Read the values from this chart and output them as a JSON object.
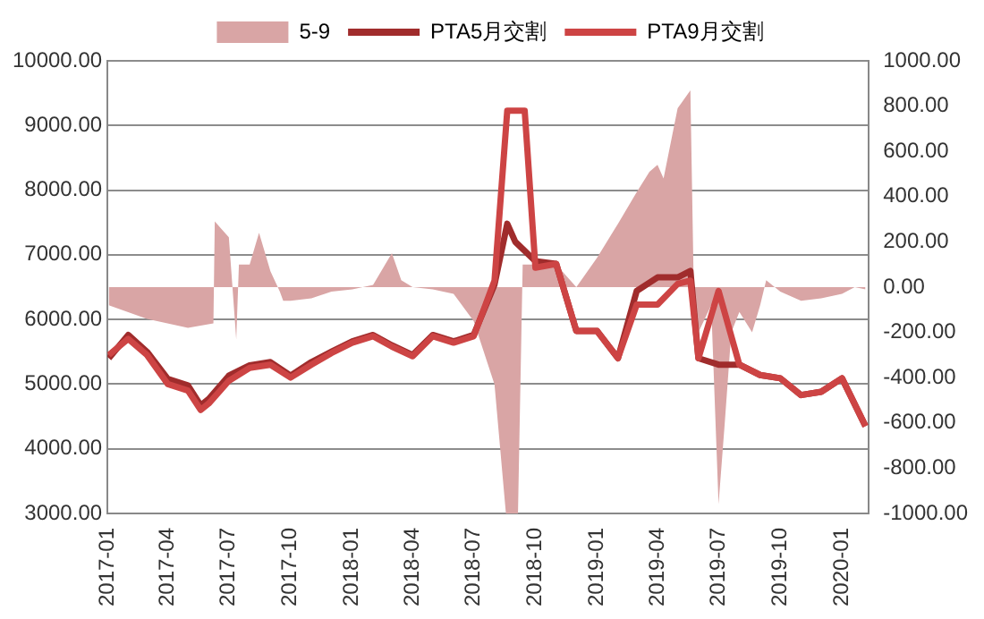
{
  "chart_data": {
    "type": "line",
    "legend": "top",
    "grid": "y",
    "marker": "none",
    "xlim": [
      "2017-01-01",
      "2020-02-10"
    ],
    "xticks": [
      "2017-01",
      "2017-04",
      "2017-07",
      "2017-10",
      "2018-01",
      "2018-04",
      "2018-07",
      "2018-10",
      "2019-01",
      "2019-04",
      "2019-07",
      "2019-10",
      "2020-01"
    ],
    "ylim": [
      3000,
      10000
    ],
    "yticks": [
      {
        "value": 3000,
        "label": "3000.00"
      },
      {
        "value": 4000,
        "label": "4000.00"
      },
      {
        "value": 5000,
        "label": "5000.00"
      },
      {
        "value": 6000,
        "label": "6000.00"
      },
      {
        "value": 7000,
        "label": "7000.00"
      },
      {
        "value": 8000,
        "label": "8000.00"
      },
      {
        "value": 9000,
        "label": "9000.00"
      },
      {
        "value": 10000,
        "label": "10000.00"
      }
    ],
    "y2lim": [
      -1000,
      1000
    ],
    "y2ticks": [
      {
        "value": -1000,
        "label": "-1000.00"
      },
      {
        "value": -800,
        "label": "-800.00"
      },
      {
        "value": -600,
        "label": "-600.00"
      },
      {
        "value": -400,
        "label": "-400.00"
      },
      {
        "value": -200,
        "label": "-200.00"
      },
      {
        "value": 0,
        "label": "0.00"
      },
      {
        "value": 200,
        "label": "200.00"
      },
      {
        "value": 400,
        "label": "400.00"
      },
      {
        "value": 600,
        "label": "600.00"
      },
      {
        "value": 800,
        "label": "800.00"
      },
      {
        "value": 1000,
        "label": "1000.00"
      }
    ],
    "series": [
      {
        "name": "5-9",
        "type": "area",
        "axis": "y2",
        "color": "#d9a5a5",
        "x": [
          "2017-01-03",
          "2017-03-01",
          "2017-05-01",
          "2017-06-08",
          "2017-06-10",
          "2017-07-01",
          "2017-07-12",
          "2017-07-16",
          "2017-08-01",
          "2017-08-15",
          "2017-09-01",
          "2017-09-15",
          "2017-09-20",
          "2017-10-01",
          "2017-11-01",
          "2017-12-01",
          "2018-01-01",
          "2018-02-01",
          "2018-03-01",
          "2018-03-15",
          "2018-04-01",
          "2018-05-01",
          "2018-06-01",
          "2018-07-01",
          "2018-08-01",
          "2018-08-18",
          "2018-09-05",
          "2018-09-12",
          "2018-10-01",
          "2018-11-01",
          "2018-12-01",
          "2019-01-01",
          "2019-02-01",
          "2019-03-01",
          "2019-03-20",
          "2019-04-01",
          "2019-04-10",
          "2019-05-01",
          "2019-05-20",
          "2019-05-25",
          "2019-06-01",
          "2019-06-20",
          "2019-07-01",
          "2019-07-10",
          "2019-07-20",
          "2019-08-01",
          "2019-08-20",
          "2019-09-01",
          "2019-09-10",
          "2019-10-01",
          "2019-11-01",
          "2019-12-01",
          "2020-01-01",
          "2020-01-20",
          "2020-02-05"
        ],
        "values": [
          -80,
          -140,
          -180,
          -160,
          290,
          220,
          -230,
          100,
          100,
          240,
          70,
          -20,
          -60,
          -60,
          -50,
          -20,
          -10,
          10,
          150,
          30,
          0,
          -10,
          -30,
          -150,
          -430,
          -1000,
          -1000,
          100,
          100,
          100,
          0,
          130,
          280,
          420,
          510,
          540,
          480,
          790,
          870,
          0,
          -200,
          -80,
          -960,
          -610,
          -200,
          -110,
          -200,
          -80,
          30,
          -20,
          -60,
          -50,
          -30,
          0,
          -10
        ]
      },
      {
        "name": "PTA5月交割",
        "type": "line",
        "color": "#a02c2c",
        "x": [
          "2017-01-03",
          "2017-02-01",
          "2017-03-01",
          "2017-04-01",
          "2017-05-01",
          "2017-05-20",
          "2017-06-01",
          "2017-07-01",
          "2017-08-01",
          "2017-09-01",
          "2017-10-01",
          "2017-11-01",
          "2017-12-01",
          "2018-01-01",
          "2018-02-01",
          "2018-03-01",
          "2018-04-01",
          "2018-05-01",
          "2018-06-01",
          "2018-07-01",
          "2018-08-01",
          "2018-08-20",
          "2018-09-01",
          "2018-10-01",
          "2018-11-01",
          "2018-12-01",
          "2019-01-01",
          "2019-02-01",
          "2019-03-01",
          "2019-04-01",
          "2019-05-01",
          "2019-05-20",
          "2019-06-01",
          "2019-07-01",
          "2019-08-01",
          "2019-09-01",
          "2019-10-01",
          "2019-11-01",
          "2019-12-01",
          "2020-01-01",
          "2020-02-05"
        ],
        "values": [
          5400,
          5760,
          5500,
          5080,
          4980,
          4670,
          4770,
          5130,
          5290,
          5340,
          5130,
          5340,
          5500,
          5660,
          5760,
          5600,
          5450,
          5760,
          5660,
          5760,
          6540,
          7480,
          7200,
          6900,
          6860,
          5820,
          5820,
          5400,
          6440,
          6650,
          6650,
          6750,
          5400,
          5300,
          5300,
          5140,
          5090,
          4830,
          4880,
          5090,
          4350
        ]
      },
      {
        "name": "PTA9月交割",
        "type": "line",
        "color": "#cd4444",
        "x": [
          "2017-01-03",
          "2017-02-01",
          "2017-03-01",
          "2017-04-01",
          "2017-05-01",
          "2017-05-20",
          "2017-06-01",
          "2017-07-01",
          "2017-08-01",
          "2017-09-01",
          "2017-10-01",
          "2017-11-01",
          "2017-12-01",
          "2018-01-01",
          "2018-02-01",
          "2018-03-01",
          "2018-04-01",
          "2018-05-01",
          "2018-06-01",
          "2018-07-01",
          "2018-08-01",
          "2018-08-20",
          "2018-09-15",
          "2018-10-01",
          "2018-11-01",
          "2018-12-01",
          "2019-01-01",
          "2019-02-01",
          "2019-03-01",
          "2019-04-01",
          "2019-05-01",
          "2019-05-20",
          "2019-06-01",
          "2019-07-01",
          "2019-08-01",
          "2019-09-01",
          "2019-10-01",
          "2019-11-01",
          "2019-12-01",
          "2020-01-01",
          "2020-02-05"
        ],
        "values": [
          5450,
          5700,
          5450,
          5000,
          4900,
          4600,
          4700,
          5050,
          5250,
          5300,
          5100,
          5300,
          5480,
          5640,
          5740,
          5580,
          5430,
          5740,
          5640,
          5740,
          6600,
          9230,
          9230,
          6800,
          6860,
          5820,
          5820,
          5400,
          6230,
          6230,
          6550,
          6600,
          5400,
          6440,
          5300,
          5140,
          5090,
          4830,
          4880,
          5090,
          4350
        ]
      }
    ]
  }
}
